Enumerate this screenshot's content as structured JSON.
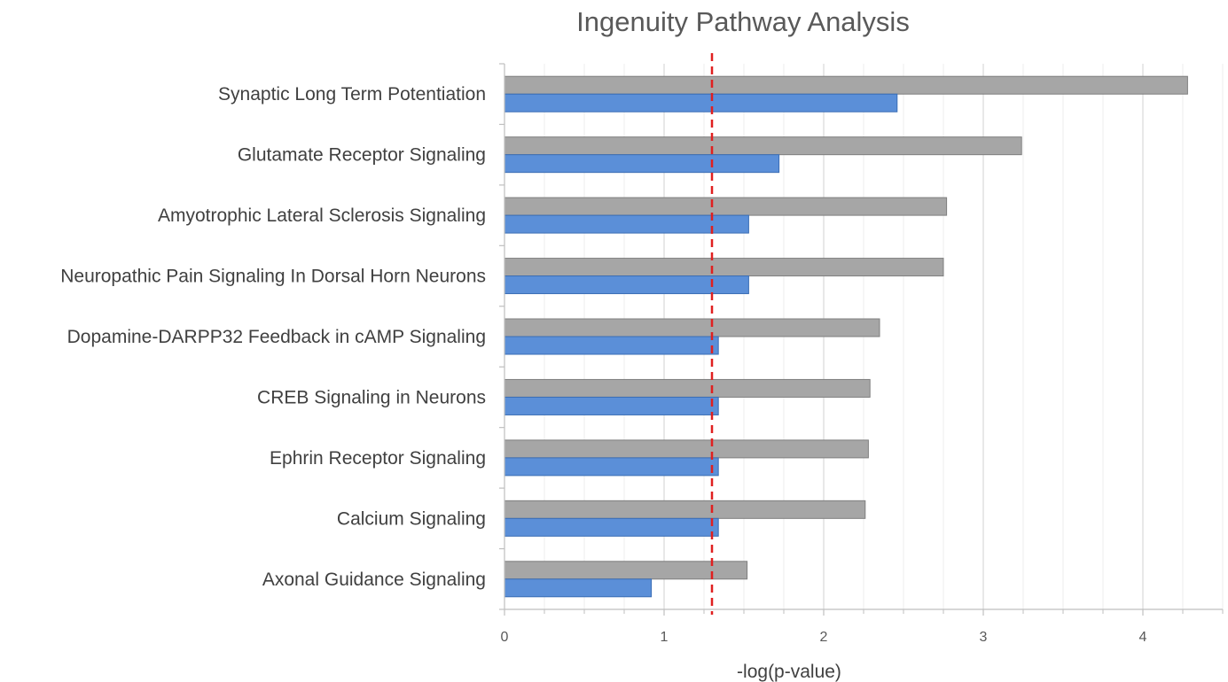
{
  "chart_data": {
    "type": "bar",
    "orientation": "horizontal",
    "title": "Ingenuity Pathway Analysis",
    "xlabel": "-log(p-value)",
    "ylabel": "",
    "xlim": [
      0,
      4.5
    ],
    "x_ticks": [
      0,
      1,
      2,
      3,
      4
    ],
    "x_tick_labels": [
      "0",
      "1",
      "2",
      "3",
      "4"
    ],
    "grid": true,
    "legend": "none",
    "categories": [
      "Synaptic Long Term Potentiation",
      "Glutamate Receptor Signaling",
      "Amyotrophic Lateral Sclerosis Signaling",
      "Neuropathic Pain Signaling In Dorsal Horn Neurons",
      "Dopamine-DARPP32 Feedback in cAMP Signaling",
      "CREB Signaling in Neurons",
      "Ephrin Receptor Signaling",
      "Calcium Signaling",
      "Axonal Guidance Signaling"
    ],
    "series": [
      {
        "color": "#a6a6a6",
        "values": [
          4.28,
          3.24,
          2.77,
          2.75,
          2.35,
          2.29,
          2.28,
          2.26,
          1.52
        ]
      },
      {
        "color": "#5b8fd8",
        "values": [
          2.46,
          1.72,
          1.53,
          1.53,
          1.34,
          1.34,
          1.34,
          1.34,
          0.92
        ]
      }
    ],
    "threshold": {
      "value": 1.3,
      "color": "#e02020",
      "style": "dashed"
    }
  }
}
